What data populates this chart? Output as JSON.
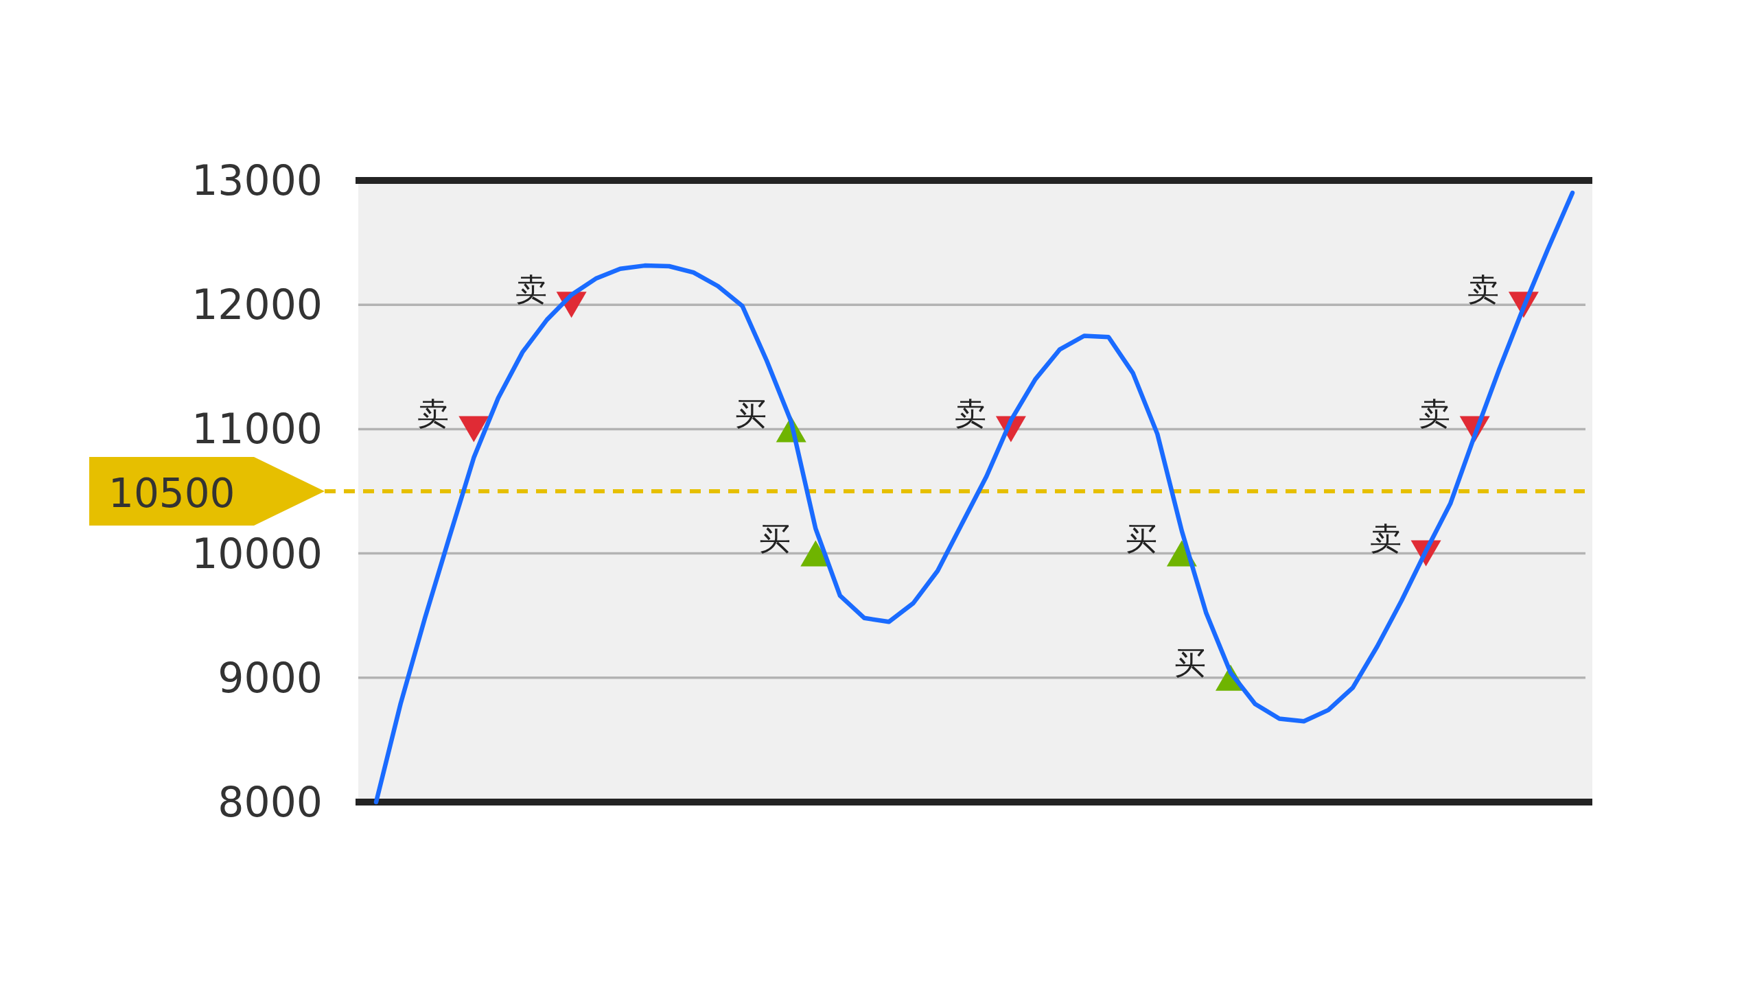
{
  "chart_data": {
    "type": "line",
    "categories": [
      null,
      null,
      null,
      null,
      null,
      null,
      null,
      null,
      null,
      null,
      null,
      null,
      null,
      null,
      null,
      null,
      null,
      null,
      null,
      null,
      null,
      null,
      null,
      null,
      null,
      null,
      null,
      null,
      null,
      null,
      null,
      null,
      null,
      null,
      null,
      null,
      null,
      null,
      null,
      null,
      null,
      null,
      null,
      null,
      null,
      null,
      null,
      null,
      null,
      null
    ],
    "ylim": [
      8000,
      13000
    ],
    "yticks": [
      8000,
      9000,
      10000,
      11000,
      12000,
      13000
    ],
    "grid": "y",
    "ref_lines": [
      {
        "axis": "y",
        "value": 10500,
        "label": "10500",
        "color": "#e6bf00",
        "line_style": "dashed"
      }
    ],
    "series": [
      {
        "color": "#1a6bff",
        "marker": "none",
        "values": [
          8000,
          8790,
          9480,
          10130,
          10770,
          11250,
          11620,
          11880,
          12080,
          12210,
          12290,
          12315,
          12310,
          12260,
          12150,
          11990,
          11550,
          11060,
          10200,
          9660,
          9480,
          9450,
          9600,
          9860,
          10240,
          10620,
          11070,
          11400,
          11640,
          11750,
          11740,
          11450,
          10960,
          10180,
          9520,
          9040,
          8790,
          8670,
          8650,
          8740,
          8920,
          9250,
          9620,
          10020,
          10400,
          10950,
          11480,
          11980,
          12450,
          12900
        ]
      },
      {
        "type": "scatter",
        "color": "#e02b35",
        "marker": "triangle-down",
        "values": [
          null,
          null,
          null,
          null,
          11000,
          null,
          null,
          null,
          12000,
          null,
          null,
          null,
          null,
          null,
          null,
          null,
          null,
          null,
          null,
          null,
          null,
          null,
          null,
          null,
          null,
          null,
          11000,
          null,
          null,
          null,
          null,
          null,
          null,
          null,
          null,
          null,
          null,
          null,
          null,
          null,
          null,
          null,
          null,
          10000,
          null,
          11000,
          null,
          12000,
          null,
          null
        ],
        "value_labels": [
          null,
          null,
          null,
          null,
          "卖",
          null,
          null,
          null,
          "卖",
          null,
          null,
          null,
          null,
          null,
          null,
          null,
          null,
          null,
          null,
          null,
          null,
          null,
          null,
          null,
          null,
          null,
          "卖",
          null,
          null,
          null,
          null,
          null,
          null,
          null,
          null,
          null,
          null,
          null,
          null,
          null,
          null,
          null,
          null,
          "卖",
          null,
          "卖",
          null,
          "卖",
          null,
          null
        ]
      },
      {
        "type": "scatter",
        "color": "#6fb400",
        "marker": "triangle",
        "values": [
          null,
          null,
          null,
          null,
          null,
          null,
          null,
          null,
          null,
          null,
          null,
          null,
          null,
          null,
          null,
          null,
          null,
          11000,
          10000,
          null,
          null,
          null,
          null,
          null,
          null,
          null,
          null,
          null,
          null,
          null,
          null,
          null,
          null,
          10000,
          null,
          9000,
          null,
          null,
          null,
          null,
          null,
          null,
          null,
          null,
          null,
          null,
          null,
          null,
          null,
          null
        ],
        "value_labels": [
          null,
          null,
          null,
          null,
          null,
          null,
          null,
          null,
          null,
          null,
          null,
          null,
          null,
          null,
          null,
          null,
          null,
          "买",
          "买",
          null,
          null,
          null,
          null,
          null,
          null,
          null,
          null,
          null,
          null,
          null,
          null,
          null,
          null,
          "买",
          null,
          "买",
          null,
          null,
          null,
          null,
          null,
          null,
          null,
          null,
          null,
          null,
          null,
          null,
          null,
          null
        ]
      }
    ]
  }
}
